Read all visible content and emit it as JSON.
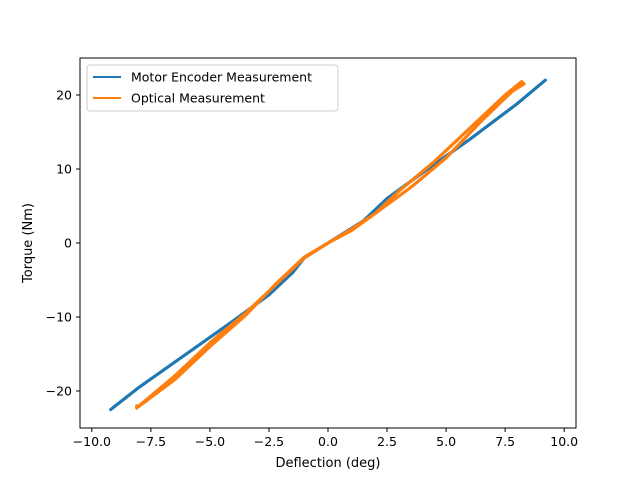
{
  "chart_data": {
    "type": "line",
    "title": "",
    "xlabel": "Deflection (deg)",
    "ylabel": "Torque (Nm)",
    "xlim": [
      -10.5,
      10.5
    ],
    "ylim": [
      -25,
      25
    ],
    "xticks": [
      -10.0,
      -7.5,
      -5.0,
      -2.5,
      0.0,
      2.5,
      5.0,
      7.5,
      10.0
    ],
    "xtick_labels": [
      "−10.0",
      "−7.5",
      "−5.0",
      "−2.5",
      "0.0",
      "2.5",
      "5.0",
      "7.5",
      "10.0"
    ],
    "yticks": [
      -20,
      -10,
      0,
      10,
      20
    ],
    "ytick_labels": [
      "−20",
      "−10",
      "0",
      "10",
      "20"
    ],
    "grid": false,
    "legend_position": "top-left",
    "series": [
      {
        "name": "Motor Encoder Measurement",
        "color": "#1f77b4",
        "x": [
          -9.2,
          -8.0,
          -6.0,
          -4.0,
          -2.5,
          -1.5,
          -1.0,
          -0.5,
          0.0,
          0.5,
          1.0,
          1.5,
          2.5,
          4.0,
          6.0,
          8.0,
          9.2
        ],
        "y": [
          -22.5,
          -19.5,
          -15.0,
          -10.5,
          -7.0,
          -4.0,
          -2.0,
          -1.0,
          0.0,
          1.0,
          2.0,
          3.0,
          6.0,
          9.5,
          14.0,
          18.8,
          22.0
        ]
      },
      {
        "name": "Optical Measurement",
        "color": "#ff7f0e",
        "x": [
          -8.0,
          -6.5,
          -5.0,
          -3.5,
          -2.0,
          -1.0,
          0.0,
          1.0,
          2.0,
          3.0,
          4.5,
          6.0,
          7.5,
          8.2,
          8.3,
          7.8,
          6.5,
          5.0,
          3.5,
          2.0,
          1.0,
          0.0,
          -1.0,
          -2.2,
          -3.5,
          -5.0,
          -6.5,
          -8.1,
          -8.1
        ],
        "y": [
          -22.0,
          -18.0,
          -13.5,
          -9.5,
          -5.0,
          -2.0,
          0.0,
          1.7,
          4.0,
          7.0,
          11.0,
          15.5,
          20.0,
          21.8,
          21.5,
          20.5,
          16.5,
          11.5,
          7.5,
          4.0,
          1.9,
          0.0,
          -1.9,
          -5.5,
          -9.8,
          -14.0,
          -18.5,
          -22.3,
          -22.0
        ]
      }
    ]
  }
}
